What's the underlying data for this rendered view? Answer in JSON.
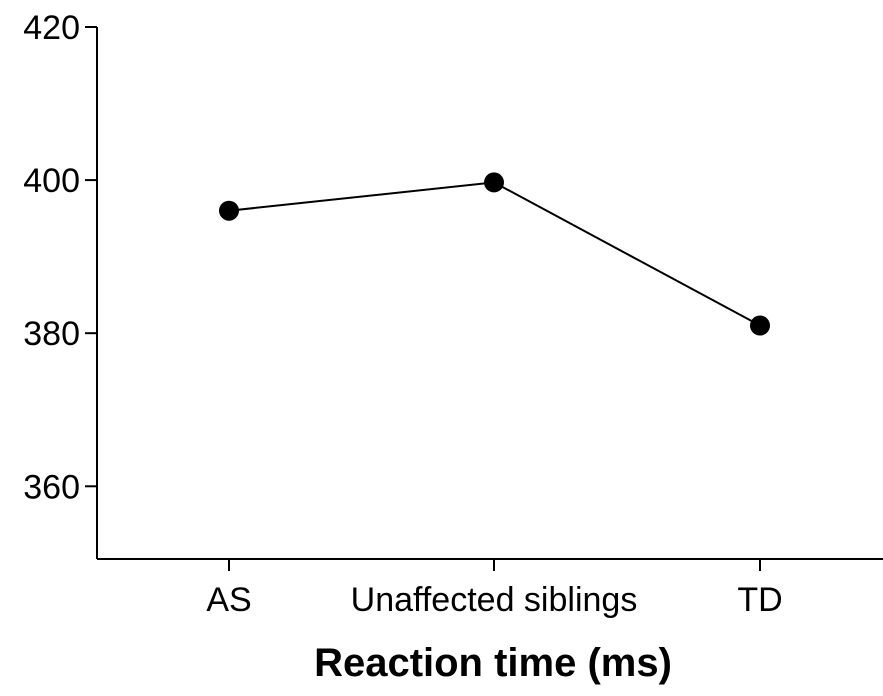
{
  "chart_data": {
    "type": "line",
    "title": "",
    "xlabel": "Reaction time (ms)",
    "ylabel": "",
    "categories": [
      "AS",
      "Unaffected siblings",
      "TD"
    ],
    "series": [
      {
        "values": [
          396,
          399.7,
          381
        ],
        "color": "#000000",
        "marker": "filled-circle"
      }
    ],
    "ylim": [
      350.5,
      420
    ],
    "yticks": [
      360,
      380,
      400,
      420
    ],
    "ytick_labels": [
      "360",
      "380",
      "400",
      "420"
    ],
    "grid": false,
    "legend": "none"
  }
}
